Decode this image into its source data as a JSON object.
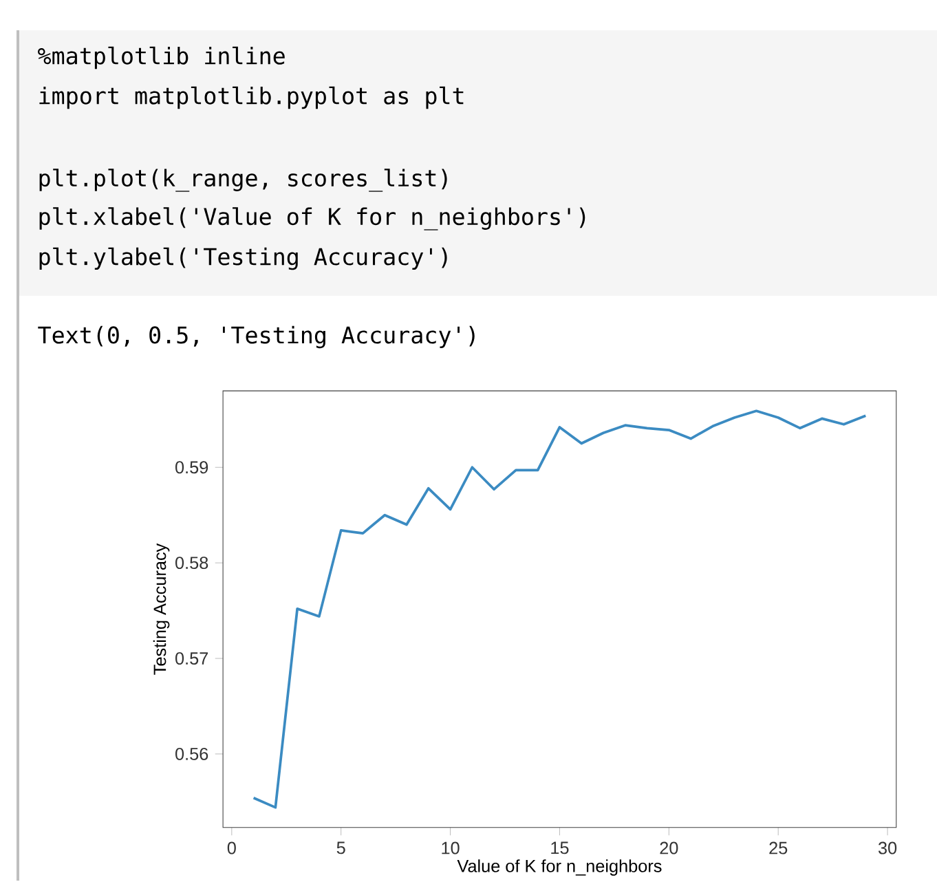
{
  "chart_data": {
    "type": "line",
    "xlabel": "Value of K for n_neighbors",
    "ylabel": "Testing Accuracy",
    "annotations": [
      "%matplotlib inline",
      "import matplotlib.pyplot as plt",
      "plt.plot(k_range,  scores_list)",
      "plt.xlabel('Value of K for n_neighbors')",
      "plt.ylabel('Testing Accuracy')",
      "Text(0, 0.5, 'Testing Accuracy')"
    ],
    "x": [
      1,
      2,
      3,
      4,
      5,
      6,
      7,
      8,
      9,
      10,
      11,
      12,
      13,
      14,
      15,
      16,
      17,
      18,
      19,
      20,
      21,
      22,
      23,
      24,
      25,
      26,
      27,
      28,
      29
    ],
    "values": [
      0.5554,
      0.5544,
      0.5752,
      0.5744,
      0.5834,
      0.5831,
      0.585,
      0.584,
      0.5878,
      0.5856,
      0.59,
      0.5877,
      0.5897,
      0.5897,
      0.5942,
      0.5925,
      0.5936,
      0.5944,
      0.5941,
      0.5939,
      0.593,
      0.5943,
      0.5952,
      0.5959,
      0.5952,
      0.5941,
      0.5951,
      0.5945,
      0.5954
    ],
    "color": "#3b8bc2",
    "xlim": [
      -0.4,
      30.4
    ],
    "ylim": [
      0.5523,
      0.598
    ],
    "xticks": [
      0,
      5,
      10,
      15,
      20,
      25,
      30
    ],
    "yticks": [
      0.56,
      0.57,
      0.58,
      0.59
    ]
  }
}
